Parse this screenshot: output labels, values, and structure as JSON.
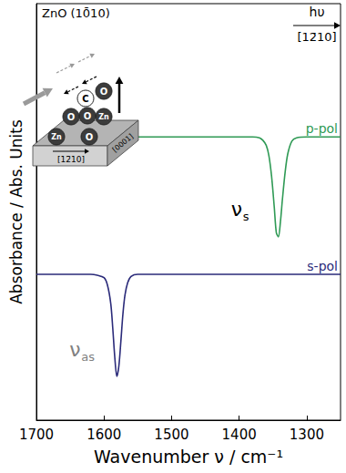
{
  "chart_data": {
    "type": "line",
    "x_label": "Wavenumber ν / cm⁻¹",
    "y_label": "Absorbance / Abs. Units",
    "xlim": [
      1700,
      1250
    ],
    "xticks": [
      1700,
      1600,
      1500,
      1400,
      1300
    ],
    "ylim": [
      0,
      10
    ],
    "grid": false,
    "tick_labels": "x",
    "x": [
      1700,
      1650,
      1620,
      1610,
      1600,
      1595,
      1590,
      1587,
      1584,
      1581,
      1578,
      1575,
      1572,
      1569,
      1565,
      1560,
      1550,
      1500,
      1450,
      1400,
      1380,
      1370,
      1365,
      1360,
      1356,
      1352,
      1348,
      1345,
      1342,
      1339,
      1336,
      1332,
      1328,
      1322,
      1315,
      1300,
      1250
    ],
    "series": [
      {
        "name": "p-pol",
        "color": "#2f9a55",
        "values": [
          null,
          null,
          null,
          null,
          null,
          null,
          null,
          null,
          null,
          null,
          null,
          null,
          null,
          null,
          null,
          null,
          6.8,
          6.8,
          6.8,
          6.8,
          6.8,
          6.78,
          6.72,
          6.6,
          6.35,
          5.85,
          5.1,
          4.5,
          4.4,
          4.75,
          5.3,
          5.95,
          6.4,
          6.7,
          6.78,
          6.8,
          6.8
        ]
      },
      {
        "name": "s-pol",
        "color": "#2b2b7a",
        "values": [
          3.5,
          3.5,
          3.5,
          3.48,
          3.42,
          3.25,
          2.8,
          2.2,
          1.5,
          1.05,
          1.3,
          1.9,
          2.55,
          3.0,
          3.3,
          3.45,
          3.5,
          3.5,
          3.5,
          3.5,
          3.5,
          3.5,
          3.5,
          3.5,
          3.5,
          3.5,
          3.5,
          3.5,
          3.5,
          3.5,
          3.5,
          3.5,
          3.5,
          3.5,
          3.5,
          3.5,
          3.5
        ]
      }
    ],
    "annotations": [
      {
        "text": "ν",
        "sub": "s",
        "series": "p-pol",
        "color": "#000000"
      },
      {
        "text": "ν",
        "sub": "as",
        "series": "s-pol",
        "color": "#808080"
      }
    ]
  },
  "inset": {
    "title": "ZnO (10̄10)",
    "beam": "hυ",
    "beam_direction": "[12̄10]",
    "surface_directions": [
      "[12̄10]",
      "[0001]"
    ],
    "atoms": [
      "Zn",
      "O",
      "O",
      "O",
      "Zn",
      "C",
      "O"
    ]
  }
}
